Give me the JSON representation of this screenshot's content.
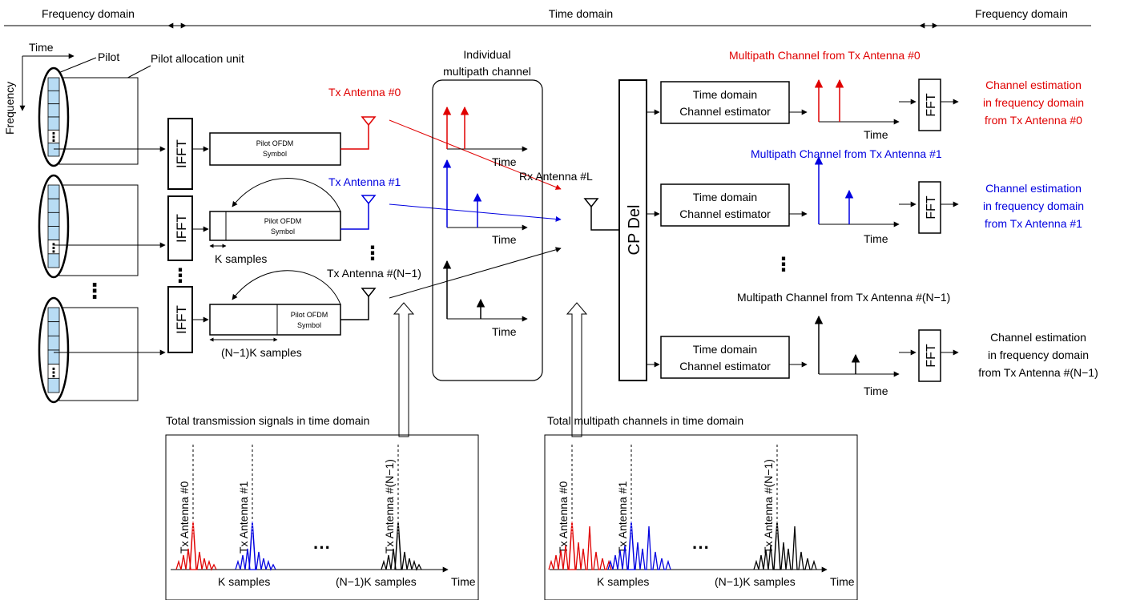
{
  "header": {
    "left": "Frequency domain",
    "center": "Time domain",
    "right": "Frequency domain"
  },
  "pilot_grid": {
    "time": "Time",
    "frequency": "Frequency",
    "pilot": "Pilot",
    "allocation_unit": "Pilot allocation unit"
  },
  "ifft_label": "IFFT",
  "symbols": {
    "symbol0": [
      "Pilot OFDM",
      "Symbol"
    ],
    "symbol1": [
      "Pilot OFDM",
      "Symbol"
    ],
    "symbolN": [
      "Pilot OFDM",
      "Symbol"
    ],
    "k_samples": "K samples",
    "nk_samples": "(N−1)K samples"
  },
  "tx": {
    "ant0": "Tx Antenna #0",
    "ant1": "Tx Antenna #1",
    "antN": "Tx Antenna #(N−1)"
  },
  "channel_box": {
    "title": [
      "Individual",
      "multipath channel"
    ],
    "time": "Time"
  },
  "rx_antenna": "Rx Antenna #L",
  "cp_del": "CP Del",
  "estimator": [
    "Time domain",
    "Channel estimator"
  ],
  "fft_label": "FFT",
  "multipath_titles": {
    "ant0": "Multipath Channel from Tx Antenna #0",
    "ant1": "Multipath Channel from Tx Antenna #1",
    "antN": "Multipath Channel from Tx Antenna #(N−1)"
  },
  "estimation_out": {
    "ant0": [
      "Channel estimation",
      "in frequency domain",
      "from Tx Antenna #0"
    ],
    "ant1": [
      "Channel estimation",
      "in frequency domain",
      "from Tx Antenna #1"
    ],
    "antN": [
      "Channel estimation",
      "in frequency domain",
      "from Tx Antenna #(N−1)"
    ]
  },
  "bottom_left": {
    "title": "Total transmission signals in time domain",
    "markers": [
      "Tx Antenna #0",
      "Tx Antenna #1",
      "Tx Antenna #(N−1)"
    ],
    "k_samples": "K samples",
    "nk_samples": "(N−1)K samples",
    "time": "Time"
  },
  "bottom_right": {
    "title": "Total multipath channels in time domain",
    "markers": [
      "Tx Antenna #0",
      "Tx Antenna #1",
      "Tx Antenna #(N−1)"
    ],
    "k_samples": "K samples",
    "nk_samples": "(N−1)K samples",
    "time": "Time"
  },
  "colors": {
    "ant0": "#e00000",
    "ant1": "#0000e0",
    "antN": "#000000",
    "pilot_cell": "#b8dcf4"
  }
}
